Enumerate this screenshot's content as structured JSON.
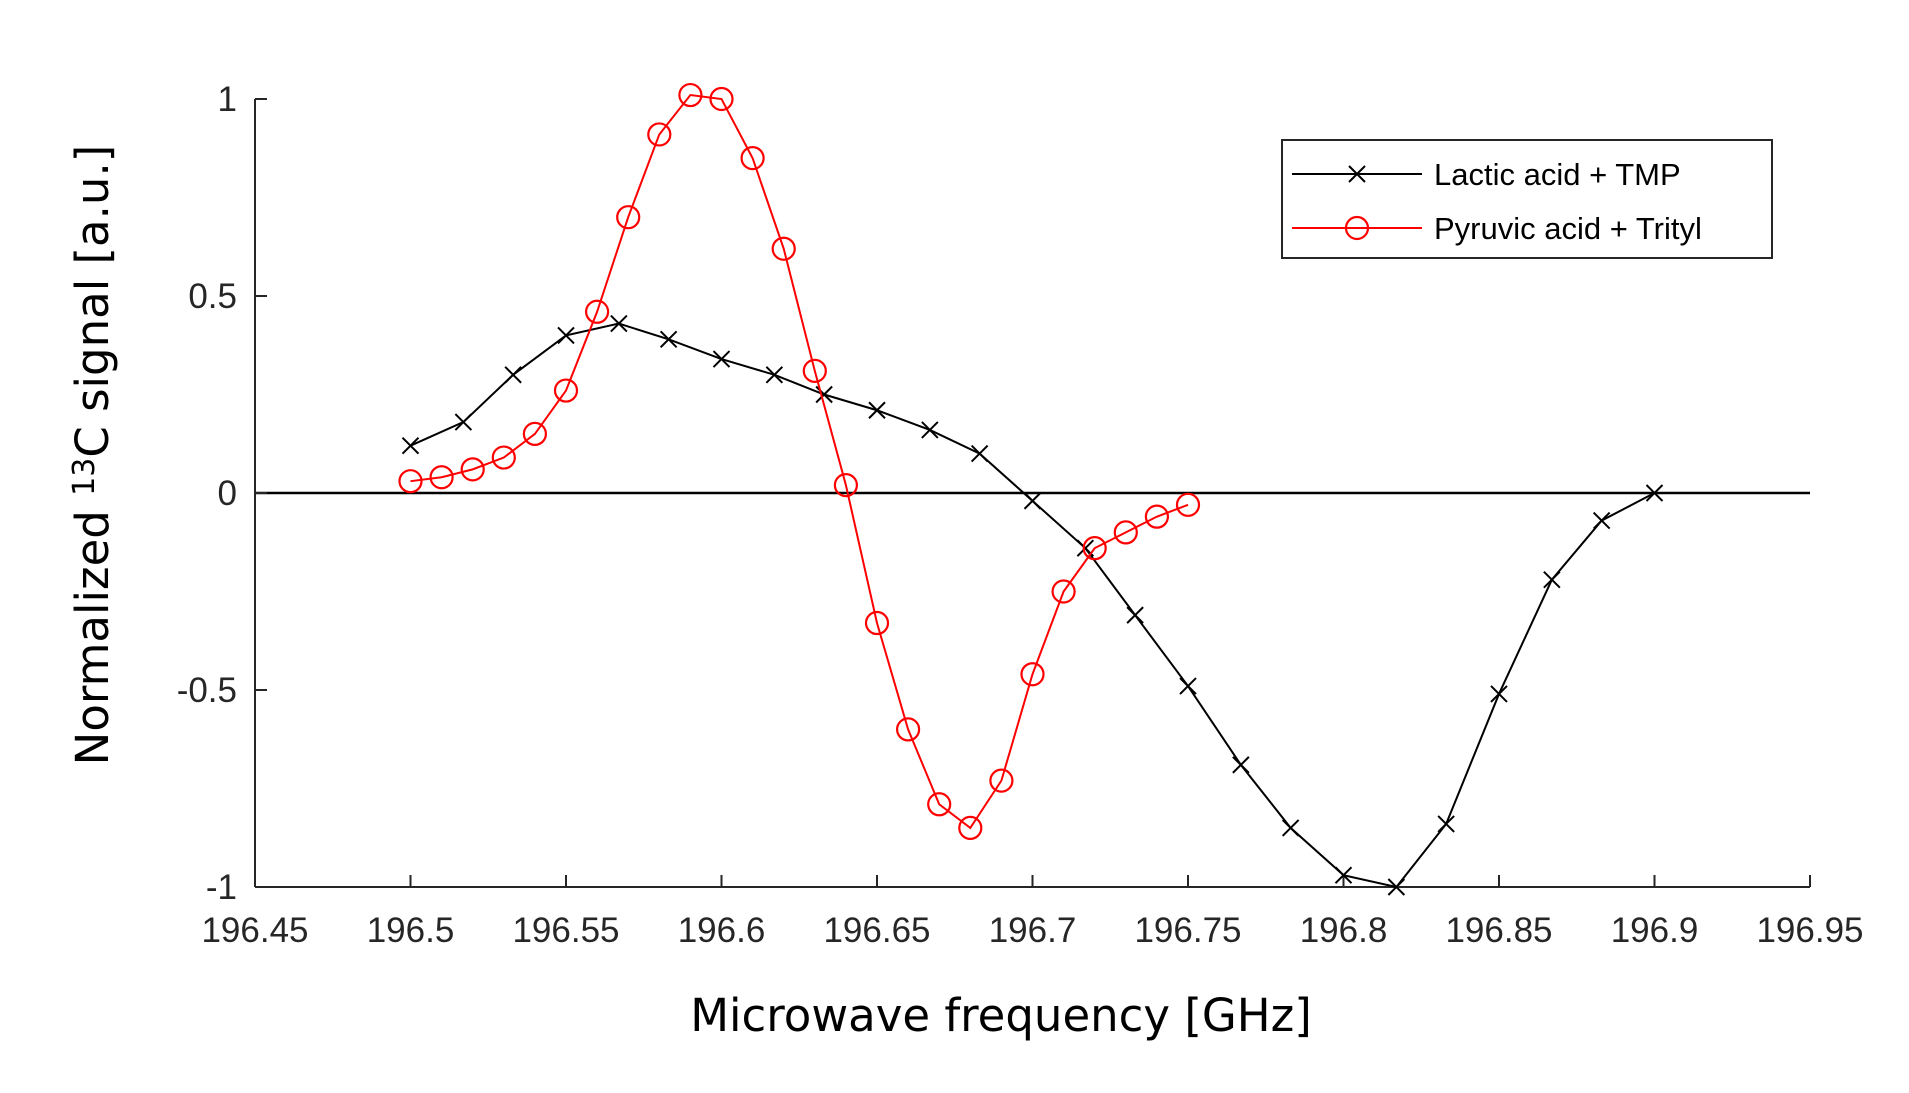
{
  "chart_data": {
    "type": "line",
    "title": "",
    "xlabel": "Microwave frequency [GHz]",
    "ylabel": {
      "prefix": "Normalized  ",
      "superscript": "13",
      "suffix": "C signal [a.u.]"
    },
    "xlim": [
      196.45,
      196.95
    ],
    "ylim": [
      -1,
      1
    ],
    "x_ticks": [
      196.45,
      196.5,
      196.55,
      196.6,
      196.65,
      196.7,
      196.75,
      196.8,
      196.85,
      196.9,
      196.95
    ],
    "x_tick_labels": [
      "196.45",
      "196.5",
      "196.55",
      "196.6",
      "196.65",
      "196.7",
      "196.75",
      "196.8",
      "196.85",
      "196.9",
      "196.95"
    ],
    "y_ticks": [
      1,
      0.5,
      0,
      -0.5,
      -1
    ],
    "y_tick_labels": [
      "1",
      "0.5",
      "0",
      "-0.5",
      "-1"
    ],
    "zero_line": true,
    "grid": false,
    "legend_position": "top-right",
    "series": [
      {
        "name": "Lactic acid + TMP",
        "color": "#000000",
        "marker": "x",
        "x": [
          196.5,
          196.517,
          196.533,
          196.55,
          196.567,
          196.583,
          196.6,
          196.617,
          196.633,
          196.65,
          196.667,
          196.683,
          196.7,
          196.717,
          196.733,
          196.75,
          196.767,
          196.783,
          196.8,
          196.817,
          196.833,
          196.85,
          196.867,
          196.883,
          196.9
        ],
        "y": [
          0.12,
          0.18,
          0.3,
          0.4,
          0.43,
          0.39,
          0.34,
          0.3,
          0.25,
          0.21,
          0.16,
          0.1,
          -0.02,
          -0.14,
          -0.31,
          -0.49,
          -0.69,
          -0.85,
          -0.97,
          -1.0,
          -0.84,
          -0.51,
          -0.22,
          -0.07,
          0.0
        ]
      },
      {
        "name": "Pyruvic acid + Trityl",
        "color": "#ff0000",
        "marker": "o",
        "x": [
          196.5,
          196.51,
          196.52,
          196.53,
          196.54,
          196.55,
          196.56,
          196.57,
          196.58,
          196.59,
          196.6,
          196.61,
          196.62,
          196.63,
          196.64,
          196.65,
          196.66,
          196.67,
          196.68,
          196.69,
          196.7,
          196.71,
          196.72,
          196.73,
          196.74,
          196.75
        ],
        "y": [
          0.03,
          0.04,
          0.06,
          0.09,
          0.15,
          0.26,
          0.46,
          0.7,
          0.91,
          1.01,
          1.0,
          0.85,
          0.62,
          0.31,
          0.02,
          -0.33,
          -0.6,
          -0.79,
          -0.85,
          -0.73,
          -0.46,
          -0.25,
          -0.14,
          -0.1,
          -0.06,
          -0.03
        ]
      }
    ]
  }
}
